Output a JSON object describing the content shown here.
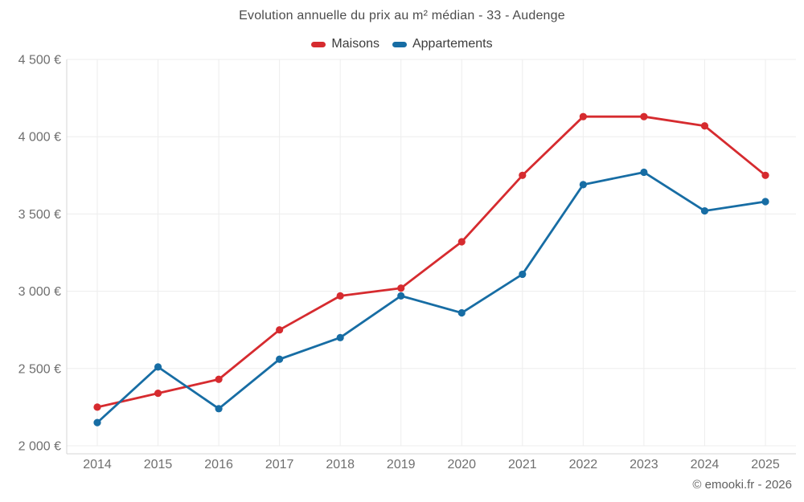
{
  "chart_data": {
    "type": "line",
    "title": "Evolution annuelle du prix au m² médian - 33 - Audenge",
    "categories": [
      "2014",
      "2015",
      "2016",
      "2017",
      "2018",
      "2019",
      "2020",
      "2021",
      "2022",
      "2023",
      "2024",
      "2025"
    ],
    "series": [
      {
        "name": "Maisons",
        "color": "#d62b2f",
        "values": [
          2250,
          2340,
          2430,
          2750,
          2970,
          3020,
          3320,
          3750,
          4130,
          4130,
          4070,
          3750
        ]
      },
      {
        "name": "Appartements",
        "color": "#176da4",
        "values": [
          2150,
          2510,
          2240,
          2560,
          2700,
          2970,
          2860,
          3110,
          3690,
          3770,
          3520,
          3580
        ]
      }
    ],
    "xlabel": "",
    "ylabel": "",
    "ylim": [
      2000,
      4500
    ],
    "yticks": [
      {
        "value": 4500,
        "label": "4 500 €"
      },
      {
        "value": 4000,
        "label": "4 000 €"
      },
      {
        "value": 3500,
        "label": "3 500 €"
      },
      {
        "value": 3000,
        "label": "3 000 €"
      },
      {
        "value": 2500,
        "label": "2 500 €"
      },
      {
        "value": 2000,
        "label": "2 000 €"
      }
    ],
    "grid": true,
    "legend_position": "top"
  },
  "footer": {
    "credit": "© emooki.fr - 2026"
  },
  "colors": {
    "grid": "#ededed",
    "axis": "#d6d6d6",
    "tick_text": "#6f6f6f",
    "title_text": "#4c4c4c",
    "legend_text": "#3c3c3c",
    "footer_text": "#606060",
    "background": "#ffffff"
  }
}
